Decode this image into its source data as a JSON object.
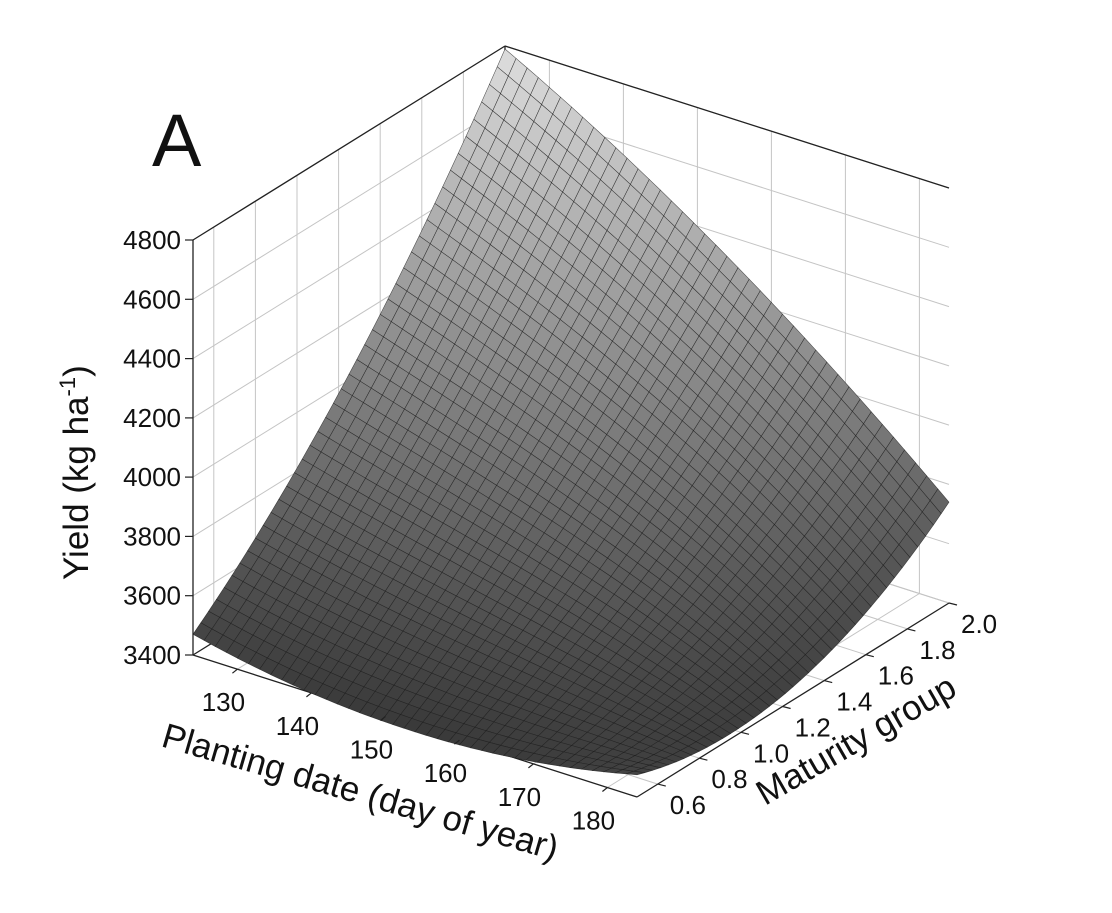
{
  "chart_data": {
    "type": "surface",
    "panel_label": "A",
    "xlabel": "Planting date (day of year)",
    "ylabel": "Maturity group",
    "zlabel": "Yield (kg ha-1)",
    "zlabel_main": "Yield (kg ha",
    "zlabel_sup": "-1",
    "zlabel_close": ")",
    "xlim": [
      124,
      184
    ],
    "ylim": [
      0.5,
      2.0
    ],
    "zlim": [
      3400,
      4800
    ],
    "x_ticks": [
      "130",
      "140",
      "150",
      "160",
      "170",
      "180"
    ],
    "y_ticks": [
      "0.6",
      "0.8",
      "1.0",
      "1.2",
      "1.4",
      "1.6",
      "1.8",
      "2.0"
    ],
    "z_ticks": [
      "3400",
      "3600",
      "3800",
      "4000",
      "4200",
      "4400",
      "4600",
      "4800"
    ],
    "grid": true,
    "surface_corners": [
      {
        "x": 124,
        "y": 0.5,
        "z": 3470
      },
      {
        "x": 184,
        "y": 0.5,
        "z": 3475
      },
      {
        "x": 184,
        "y": 2.0,
        "z": 3740
      },
      {
        "x": 124,
        "y": 2.0,
        "z": 4790
      }
    ],
    "surface_samples": [
      {
        "x": 154,
        "y": 0.5,
        "z": 3380
      },
      {
        "x": 175,
        "y": 0.5,
        "z": 3330
      },
      {
        "x": 184,
        "y": 1.4,
        "z": 3430
      },
      {
        "x": 124,
        "y": 1.0,
        "z": 3800
      },
      {
        "x": 154,
        "y": 2.0,
        "z": 4330
      }
    ]
  }
}
